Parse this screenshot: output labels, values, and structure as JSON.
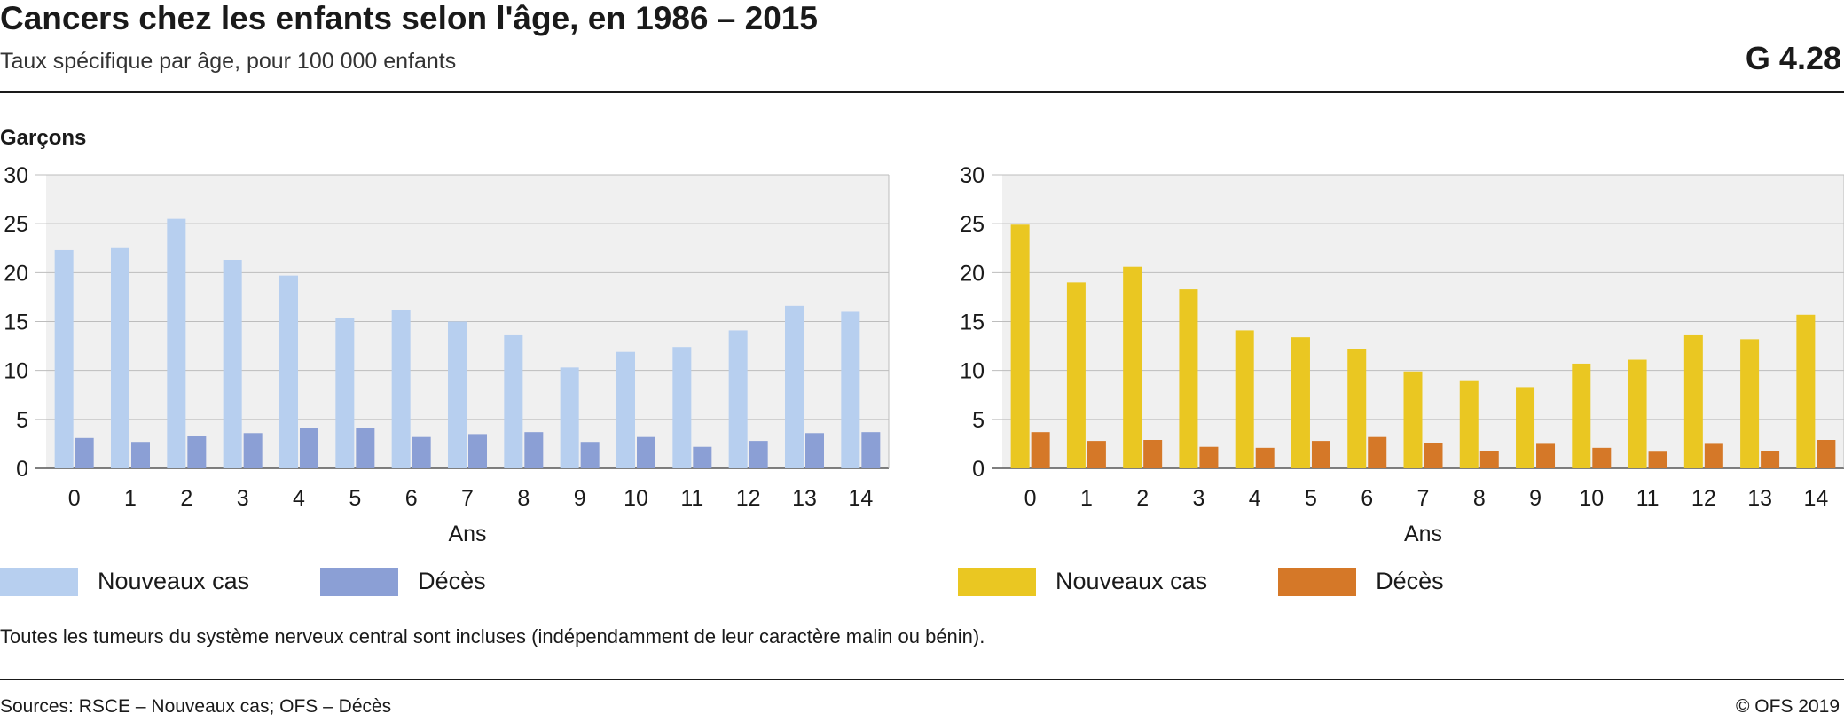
{
  "header": {
    "title": "Cancers chez les enfants selon l'âge, en 1986 – 2015",
    "subtitle": "Taux spécifique par âge, pour 100 000 enfants",
    "code": "G 4.28"
  },
  "panel_label": "Garçons",
  "note": "Toutes les tumeurs du système nerveux central sont incluses (indépendamment de leur caractère malin ou bénin).",
  "footer": {
    "sources": "Sources: RSCE – Nouveaux cas; OFS – Décès",
    "copyright": "© OFS 2019"
  },
  "chart_data": [
    {
      "type": "bar",
      "categories": [
        "0",
        "1",
        "2",
        "3",
        "4",
        "5",
        "6",
        "7",
        "8",
        "9",
        "10",
        "11",
        "12",
        "13",
        "14"
      ],
      "xlabel": "Ans",
      "ylabel": "",
      "ylim": [
        0,
        30
      ],
      "yticks": [
        0,
        5,
        10,
        15,
        20,
        25,
        30
      ],
      "grid": true,
      "legend": "bottom-left",
      "series": [
        {
          "name": "Nouveaux cas",
          "color": "#b7cfef",
          "values": [
            22.3,
            22.5,
            25.5,
            21.3,
            19.7,
            15.4,
            16.2,
            15.0,
            13.6,
            10.3,
            11.9,
            12.4,
            14.1,
            16.6,
            16.0
          ]
        },
        {
          "name": "Décès",
          "color": "#8b9fd5",
          "values": [
            3.1,
            2.7,
            3.3,
            3.6,
            4.1,
            4.1,
            3.2,
            3.5,
            3.7,
            2.7,
            3.2,
            2.2,
            2.8,
            3.6,
            3.7
          ]
        }
      ]
    },
    {
      "type": "bar",
      "categories": [
        "0",
        "1",
        "2",
        "3",
        "4",
        "5",
        "6",
        "7",
        "8",
        "9",
        "10",
        "11",
        "12",
        "13",
        "14"
      ],
      "xlabel": "Ans",
      "ylabel": "",
      "ylim": [
        0,
        30
      ],
      "yticks": [
        0,
        5,
        10,
        15,
        20,
        25,
        30
      ],
      "grid": true,
      "legend": "bottom-left",
      "series": [
        {
          "name": "Nouveaux cas",
          "color": "#eac722",
          "values": [
            24.9,
            19.0,
            20.6,
            18.3,
            14.1,
            13.4,
            12.2,
            9.9,
            9.0,
            8.3,
            10.7,
            11.1,
            13.6,
            13.2,
            15.7
          ]
        },
        {
          "name": "Décès",
          "color": "#d57828",
          "values": [
            3.7,
            2.8,
            2.9,
            2.2,
            2.1,
            2.8,
            3.2,
            2.6,
            1.8,
            2.5,
            2.1,
            1.7,
            2.5,
            1.8,
            2.9
          ]
        }
      ]
    }
  ]
}
